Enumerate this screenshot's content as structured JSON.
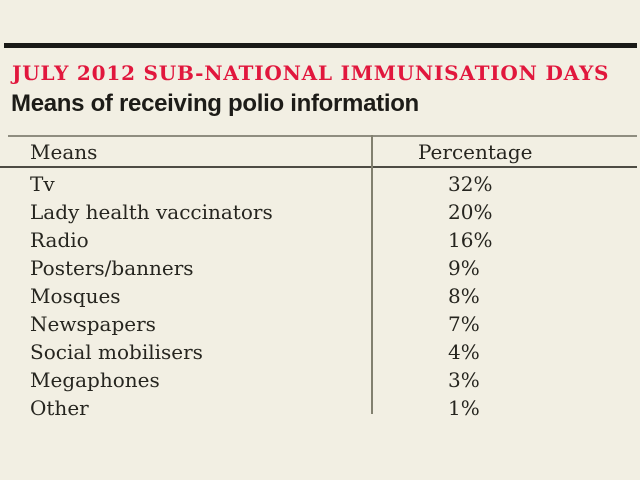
{
  "page": {
    "background_color": "#f2efe3",
    "accent_red": "#e1173d",
    "rule_color": "#1a1a17",
    "text_color": "#26251f",
    "grid_line_color": "#8f8d80"
  },
  "header": {
    "kicker": "JULY 2012 SUB-NATIONAL IMMUNISATION DAYS",
    "title": "Means of receiving polio information"
  },
  "table": {
    "columns": [
      "Means",
      "Percentage"
    ],
    "rows": [
      {
        "means": "Tv",
        "percentage": "32%"
      },
      {
        "means": "Lady health vaccinators",
        "percentage": "20%"
      },
      {
        "means": "Radio",
        "percentage": "16%"
      },
      {
        "means": "Posters/banners",
        "percentage": "9%"
      },
      {
        "means": "Mosques",
        "percentage": "8%"
      },
      {
        "means": "Newspapers",
        "percentage": "7%"
      },
      {
        "means": "Social mobilisers",
        "percentage": "4%"
      },
      {
        "means": "Megaphones",
        "percentage": "3%"
      },
      {
        "means": "Other",
        "percentage": "1%"
      }
    ]
  },
  "chart_data": {
    "type": "table",
    "title": "Means of receiving polio information",
    "subtitle": "JULY 2012 SUB-NATIONAL IMMUNISATION DAYS",
    "columns": [
      "Means",
      "Percentage"
    ],
    "categories": [
      "Tv",
      "Lady health vaccinators",
      "Radio",
      "Posters/banners",
      "Mosques",
      "Newspapers",
      "Social mobilisers",
      "Megaphones",
      "Other"
    ],
    "values": [
      32,
      20,
      16,
      9,
      8,
      7,
      4,
      3,
      1
    ],
    "unit": "%"
  }
}
